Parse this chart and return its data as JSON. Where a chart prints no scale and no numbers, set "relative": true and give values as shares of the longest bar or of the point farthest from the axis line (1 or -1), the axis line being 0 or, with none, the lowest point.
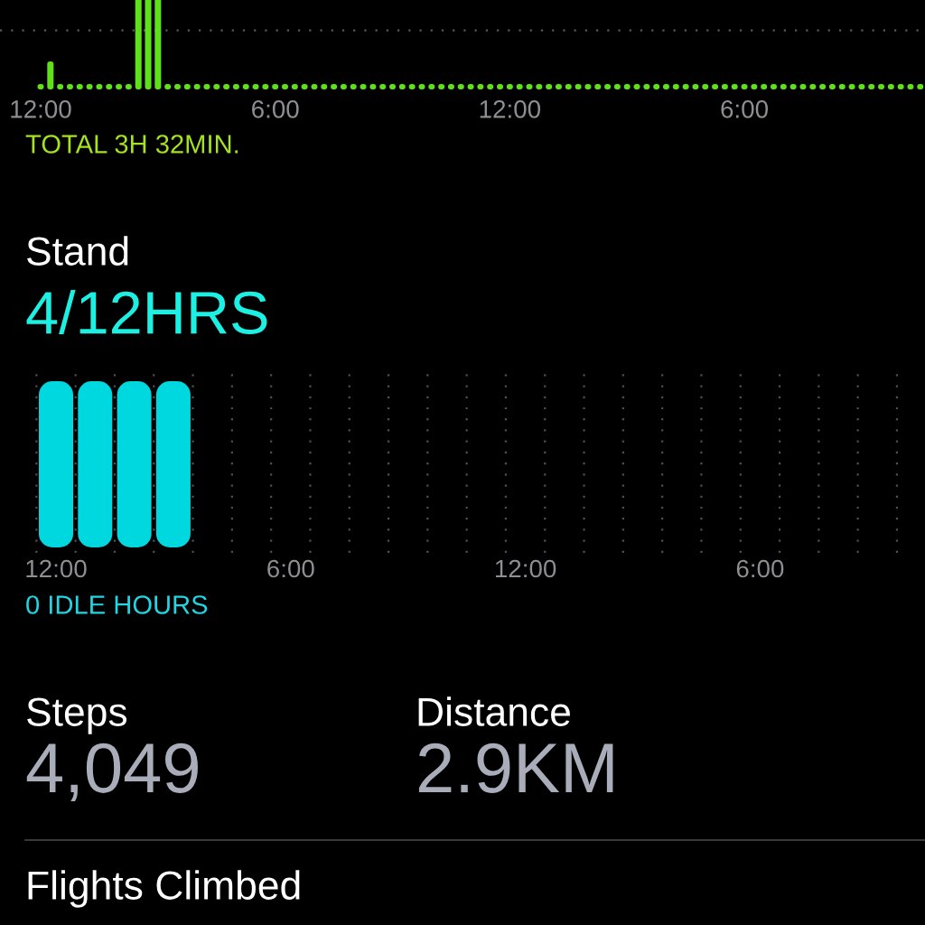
{
  "chart_data": [
    {
      "type": "bar",
      "relative": true,
      "color": "#5ee01a",
      "categories": [
        "12:00",
        null,
        null,
        null,
        null,
        null,
        null,
        null,
        null,
        null,
        null,
        null,
        null,
        null,
        null,
        null,
        null,
        null,
        null,
        null,
        null,
        null,
        null,
        null,
        "6:00",
        null,
        null,
        null,
        null,
        null,
        null,
        null,
        null,
        null,
        null,
        null,
        null,
        null,
        null,
        null,
        null,
        null,
        null,
        null,
        null,
        null,
        null,
        null,
        "12:00",
        null,
        null,
        null,
        null,
        null,
        null,
        null,
        null,
        null,
        null,
        null,
        null,
        null,
        null,
        null,
        null,
        null,
        null,
        null,
        null,
        null,
        null,
        null,
        "6:00",
        null,
        null,
        null,
        null,
        null,
        null,
        null,
        null,
        null,
        null,
        null,
        null,
        null,
        null,
        null,
        null,
        null,
        null
      ],
      "values": [
        0,
        0.26,
        0,
        0,
        0,
        0,
        0,
        0,
        0,
        0,
        1,
        1,
        1,
        0,
        0,
        0,
        0,
        0,
        0,
        0,
        0,
        0,
        0,
        0,
        0,
        0,
        0,
        0,
        0,
        0,
        0,
        0,
        0,
        0,
        0,
        0,
        0,
        0,
        0,
        0,
        0,
        0,
        0,
        0,
        0,
        0,
        0,
        0,
        0,
        0,
        0,
        0,
        0,
        0,
        0,
        0,
        0,
        0,
        0,
        0,
        0,
        0,
        0,
        0,
        0,
        0,
        0,
        0,
        0,
        0,
        0,
        0,
        0,
        0,
        0,
        0,
        0,
        0,
        0,
        0,
        0,
        0,
        0,
        0,
        0,
        0,
        0,
        0,
        0,
        0,
        0
      ],
      "ref_lines": [
        {
          "axis": "y",
          "value": 0.65,
          "color": "#5a5a5e",
          "line_style": "dotted"
        }
      ],
      "annotations": [
        "TOTAL 3H 32MIN."
      ]
    },
    {
      "type": "bar",
      "relative": true,
      "title": "Stand",
      "subtitle": "4/12HRS",
      "color": "#00d8e0",
      "categories": [
        "12:00",
        null,
        null,
        null,
        null,
        null,
        "6:00",
        null,
        null,
        null,
        null,
        null,
        "12:00",
        null,
        null,
        null,
        null,
        null,
        "6:00",
        null,
        null,
        null,
        null
      ],
      "values": [
        1,
        1,
        1,
        1,
        0,
        0,
        0,
        0,
        0,
        0,
        0,
        0,
        0,
        0,
        0,
        0,
        0,
        0,
        0,
        0,
        0,
        0,
        0
      ],
      "grid": "x",
      "annotations": [
        "0 IDLE HOURS"
      ]
    },
    {
      "type": "other",
      "title": "Steps",
      "annotations": [
        "4,049"
      ]
    },
    {
      "type": "other",
      "title": "Distance",
      "annotations": [
        "2.9KM"
      ]
    },
    {
      "type": "other",
      "title": "Flights Climbed"
    }
  ]
}
